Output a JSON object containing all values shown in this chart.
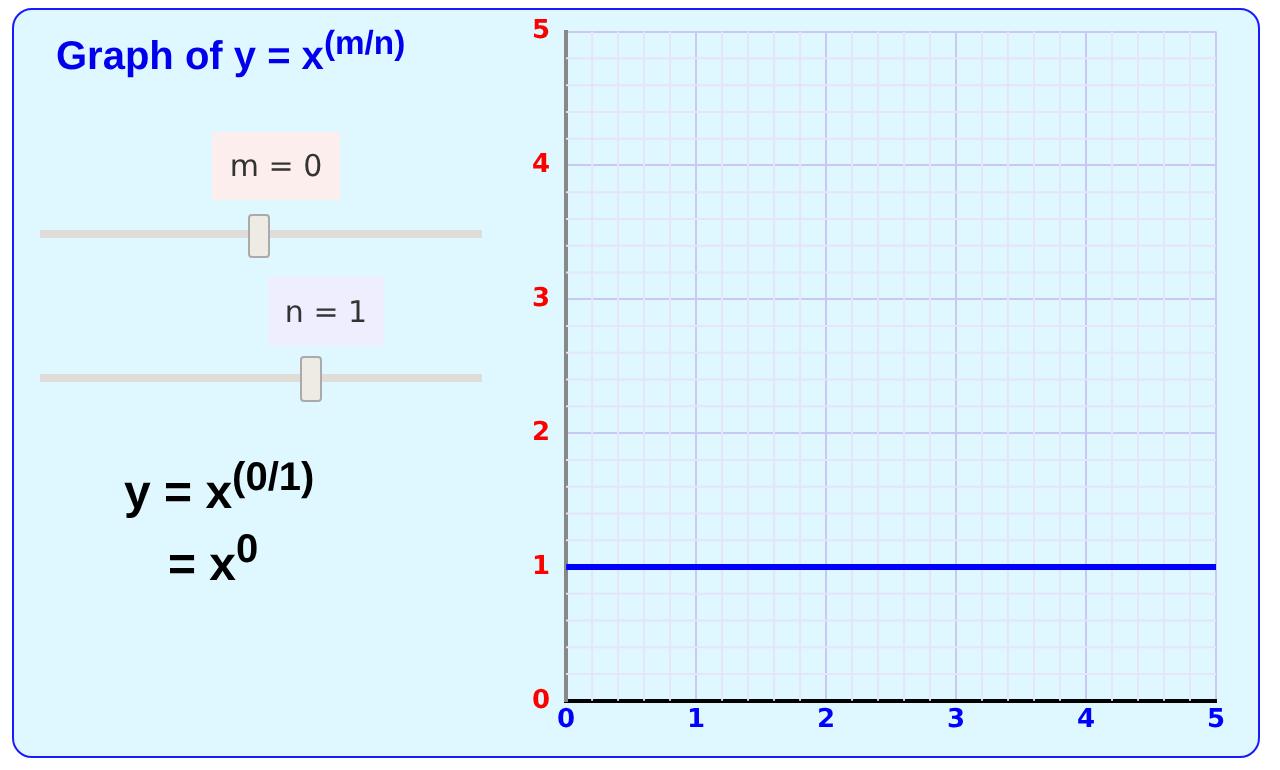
{
  "chart_data": {
    "type": "line",
    "title": "Graph of y = x$^{(m/n)}$",
    "annotations": [
      "m = 0",
      "n = 1",
      "y = x$^{(0/1)}$",
      "= x$^{0}$"
    ],
    "series": [
      {
        "x": [
          0,
          5
        ],
        "values": [
          1,
          1
        ],
        "color": "#0000ff"
      }
    ],
    "xlim": [
      0,
      5
    ],
    "xticks": [
      0,
      1,
      2,
      3,
      4,
      5
    ],
    "ylim": [
      0,
      5
    ],
    "yticks": [
      0,
      1,
      2,
      3,
      4,
      5
    ],
    "grid": true,
    "legend": false,
    "marker": "none",
    "line_style": "solid"
  }
}
